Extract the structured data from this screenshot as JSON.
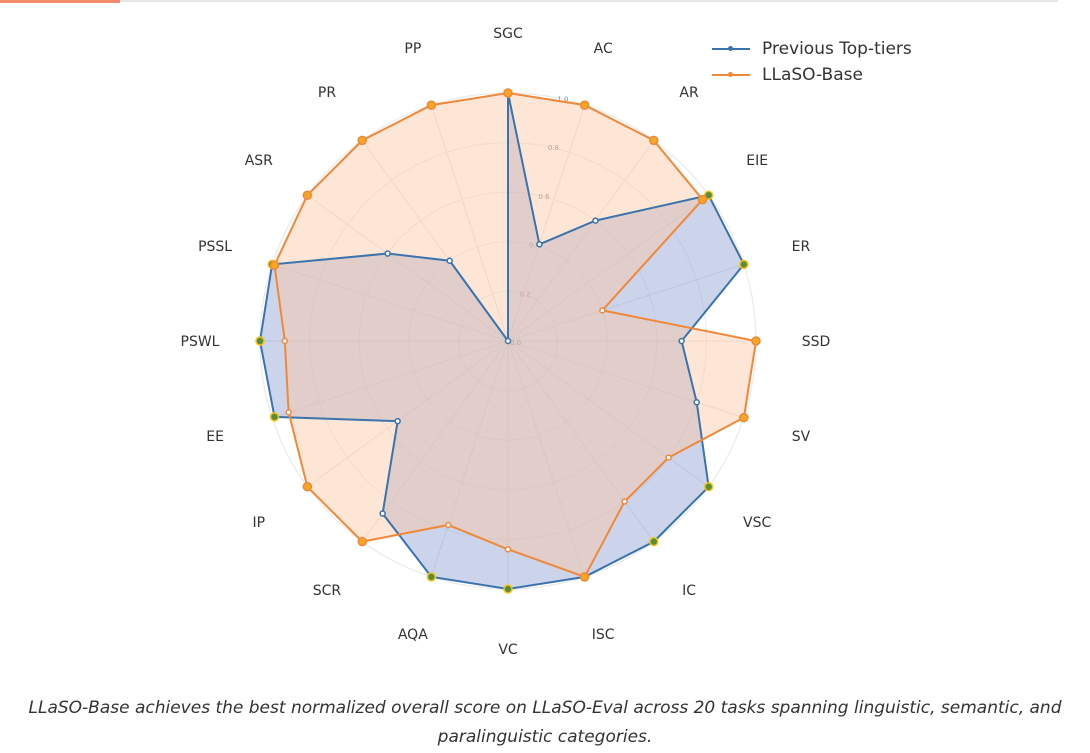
{
  "chart_data": {
    "type": "radar",
    "title": "",
    "categories": [
      "SGC",
      "AC",
      "AR",
      "EIE",
      "ER",
      "SSD",
      "SV",
      "VSC",
      "IC",
      "ISC",
      "VC",
      "AQA",
      "SCR",
      "IP",
      "EE",
      "PSWL",
      "PSSL",
      "ASR",
      "PR",
      "PP"
    ],
    "radial_ticks": [
      "0.0",
      "0.2",
      "0.4",
      "0.6",
      "0.8",
      "1.0"
    ],
    "rlim": [
      0,
      1.0
    ],
    "legend_position": "top-right",
    "series": [
      {
        "name": "Previous Top-tiers",
        "color": "#3a73ad",
        "fill": "#8f9fd4",
        "values": [
          1.0,
          0.41,
          0.6,
          1.0,
          1.0,
          0.7,
          0.8,
          1.0,
          1.0,
          1.0,
          1.0,
          1.0,
          0.86,
          0.55,
          0.99,
          1.0,
          1.0,
          0.6,
          0.4,
          0.0
        ]
      },
      {
        "name": "LLaSO-Base",
        "color": "#f0883a",
        "fill": "#fac8a2",
        "values": [
          1.0,
          1.0,
          1.0,
          0.97,
          0.4,
          1.0,
          1.0,
          0.8,
          0.8,
          1.0,
          0.84,
          0.78,
          1.0,
          1.0,
          0.93,
          0.9,
          0.99,
          1.0,
          1.0,
          1.0
        ]
      }
    ]
  },
  "legend": {
    "items": [
      {
        "label": "Previous Top-tiers",
        "color": "#3a73ad"
      },
      {
        "label": "LLaSO-Base",
        "color": "#f0883a"
      }
    ]
  },
  "caption": "LLaSO-Base achieves the best normalized overall score on LLaSO-Eval across 20 tasks spanning linguistic, semantic, and paralinguistic categories."
}
